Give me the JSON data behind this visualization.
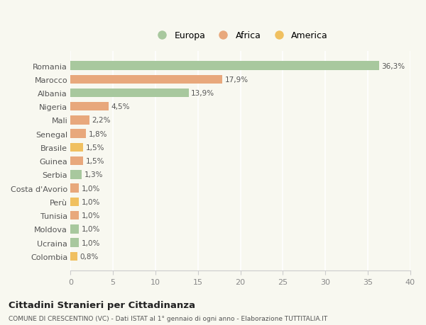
{
  "countries": [
    "Romania",
    "Marocco",
    "Albania",
    "Nigeria",
    "Mali",
    "Senegal",
    "Brasile",
    "Guinea",
    "Serbia",
    "Costa d'Avorio",
    "Perù",
    "Tunisia",
    "Moldova",
    "Ucraina",
    "Colombia"
  ],
  "values": [
    36.3,
    17.9,
    13.9,
    4.5,
    2.2,
    1.8,
    1.5,
    1.5,
    1.3,
    1.0,
    1.0,
    1.0,
    1.0,
    1.0,
    0.8
  ],
  "labels": [
    "36,3%",
    "17,9%",
    "13,9%",
    "4,5%",
    "2,2%",
    "1,8%",
    "1,5%",
    "1,5%",
    "1,3%",
    "1,0%",
    "1,0%",
    "1,0%",
    "1,0%",
    "1,0%",
    "0,8%"
  ],
  "continents": [
    "Europa",
    "Africa",
    "Europa",
    "Africa",
    "Africa",
    "Africa",
    "America",
    "Africa",
    "Europa",
    "Africa",
    "America",
    "Africa",
    "Europa",
    "Europa",
    "America"
  ],
  "colors": {
    "Europa": "#a8c89e",
    "Africa": "#e8a87c",
    "America": "#f0c060"
  },
  "legend_labels": [
    "Europa",
    "Africa",
    "America"
  ],
  "legend_colors": [
    "#a8c89e",
    "#e8a87c",
    "#f0c060"
  ],
  "xlim": [
    0,
    40
  ],
  "xticks": [
    0,
    5,
    10,
    15,
    20,
    25,
    30,
    35,
    40
  ],
  "title": "Cittadini Stranieri per Cittadinanza",
  "subtitle": "COMUNE DI CRESCENTINO (VC) - Dati ISTAT al 1° gennaio di ogni anno - Elaborazione TUTTITALIA.IT",
  "bg_color": "#f8f8f0",
  "grid_color": "#ffffff",
  "bar_height": 0.65
}
